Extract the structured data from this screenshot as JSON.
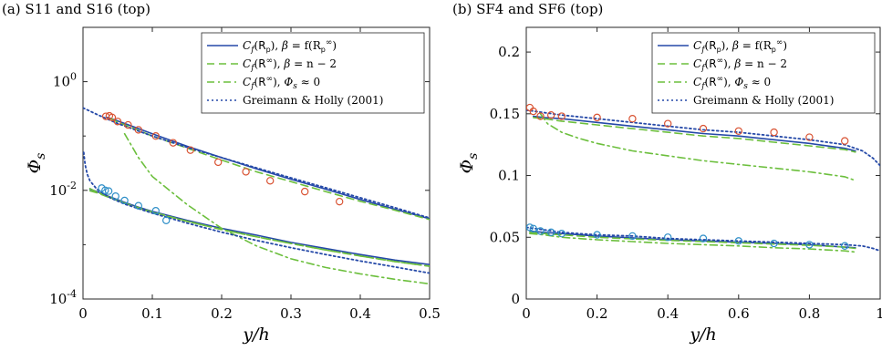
{
  "chart_data": [
    {
      "type": "line",
      "title": "(a) S11 and S16 (top)",
      "xlabel": "y/h",
      "ylabel": "Φ_s",
      "yscale": "log",
      "xlim": [
        0,
        0.5
      ],
      "ylim": [
        0.0001,
        10
      ],
      "xticks": [
        "0",
        "0.1",
        "0.2",
        "0.3",
        "0.4",
        "0.5"
      ],
      "yticks": [
        "10^-4",
        "10^-2",
        "10^0"
      ],
      "legend_position": "top-right",
      "legend": [
        {
          "math": "C",
          "sub": "f",
          "arg": "R",
          "argsub": "p",
          "argsup": "",
          "tail_b": "β",
          "tail": " = f(R",
          "tail_sub": "p",
          "tail_sup": "∞",
          "tail_end": ")"
        },
        {
          "math": "C",
          "sub": "f",
          "arg": "R",
          "argsub": "",
          "argsup": "∞",
          "tail_b": "β",
          "tail": " = n − 2",
          "tail_sub": "",
          "tail_sup": "",
          "tail_end": ""
        },
        {
          "math": "C",
          "sub": "f",
          "arg": "R",
          "argsub": "",
          "argsup": "∞",
          "tail_b": "Φ",
          "tail": " ≈ 0",
          "tail_sub": "s",
          "tail_sup": "",
          "tail_end": ""
        },
        {
          "plain": "Greimann & Holly (2001)"
        }
      ],
      "series": [
        {
          "key": "cf_rp",
          "color": "#2549a8",
          "style": "solid",
          "curves": [
            {
              "x": [
                0.035,
                0.05,
                0.075,
                0.1,
                0.15,
                0.2,
                0.25,
                0.3,
                0.35,
                0.4,
                0.45,
                0.5
              ],
              "y": [
                0.22,
                0.19,
                0.145,
                0.11,
                0.065,
                0.04,
                0.025,
                0.016,
                0.0105,
                0.0068,
                0.0045,
                0.003
              ]
            },
            {
              "x": [
                0.01,
                0.02,
                0.04,
                0.06,
                0.08,
                0.1,
                0.15,
                0.2,
                0.25,
                0.3,
                0.35,
                0.4,
                0.45,
                0.5
              ],
              "y": [
                0.0105,
                0.0095,
                0.0075,
                0.006,
                0.0049,
                0.0041,
                0.0028,
                0.002,
                0.0015,
                0.0011,
                0.00085,
                0.00066,
                0.00052,
                0.00043
              ]
            }
          ]
        },
        {
          "key": "cf_rinf_n2",
          "color": "#6cbf3d",
          "style": "dash",
          "curves": [
            {
              "x": [
                0.04,
                0.05,
                0.075,
                0.1,
                0.15,
                0.2,
                0.25,
                0.3,
                0.35,
                0.4,
                0.45,
                0.5
              ],
              "y": [
                0.21,
                0.18,
                0.135,
                0.1,
                0.06,
                0.036,
                0.022,
                0.0145,
                0.0095,
                0.0063,
                0.0043,
                0.0029
              ]
            },
            {
              "x": [
                0.01,
                0.02,
                0.04,
                0.06,
                0.08,
                0.1,
                0.15,
                0.2,
                0.25,
                0.3,
                0.35,
                0.4,
                0.45,
                0.5
              ],
              "y": [
                0.0098,
                0.009,
                0.0072,
                0.0058,
                0.0048,
                0.004,
                0.0027,
                0.0019,
                0.0014,
                0.00105,
                0.0008,
                0.00062,
                0.00049,
                0.0004
              ]
            }
          ]
        },
        {
          "key": "cf_rinf_phi0",
          "color": "#6cbf3d",
          "style": "dashdot",
          "curves": [
            {
              "x": [
                0.06,
                0.08,
                0.1,
                0.15,
                0.2,
                0.25,
                0.3,
                0.35,
                0.4,
                0.45,
                0.5
              ],
              "y": [
                0.11,
                0.04,
                0.018,
                0.0055,
                0.002,
                0.00095,
                0.00055,
                0.00038,
                0.00029,
                0.00023,
                0.00019
              ]
            },
            {
              "x": [
                0.01,
                0.02,
                0.04,
                0.06,
                0.08,
                0.1,
                0.15,
                0.2,
                0.25,
                0.3,
                0.35,
                0.4,
                0.45,
                0.5
              ],
              "y": [
                0.0108,
                0.0093,
                0.0074,
                0.0058,
                0.0047,
                0.0039,
                0.0027,
                0.0019,
                0.0014,
                0.00105,
                0.0008,
                0.00062,
                0.00049,
                0.0004
              ]
            }
          ]
        },
        {
          "key": "greimann",
          "color": "#2549a8",
          "style": "dot",
          "curves": [
            {
              "x": [
                0,
                0.02,
                0.05,
                0.1,
                0.15,
                0.2,
                0.25,
                0.3,
                0.35,
                0.4,
                0.45,
                0.5
              ],
              "y": [
                0.33,
                0.25,
                0.17,
                0.1,
                0.062,
                0.04,
                0.026,
                0.017,
                0.0112,
                0.0073,
                0.0048,
                0.0031
              ]
            },
            {
              "x": [
                0.001,
                0.003,
                0.006,
                0.01,
                0.02,
                0.04,
                0.06,
                0.1,
                0.15,
                0.2,
                0.25,
                0.3,
                0.35,
                0.4,
                0.45,
                0.5
              ],
              "y": [
                0.05,
                0.03,
                0.02,
                0.015,
                0.0105,
                0.0072,
                0.0056,
                0.0038,
                0.0025,
                0.0017,
                0.0012,
                0.00088,
                0.00066,
                0.0005,
                0.00039,
                0.0003
              ]
            }
          ]
        }
      ],
      "markers": [
        {
          "color": "#d95333",
          "x": [
            0.033,
            0.038,
            0.042,
            0.05,
            0.065,
            0.08,
            0.105,
            0.13,
            0.155,
            0.195,
            0.235,
            0.27,
            0.32,
            0.37
          ],
          "y": [
            0.23,
            0.235,
            0.22,
            0.185,
            0.16,
            0.13,
            0.1,
            0.075,
            0.055,
            0.033,
            0.022,
            0.015,
            0.0095,
            0.0062
          ]
        },
        {
          "color": "#2f8fc8",
          "x": [
            0.027,
            0.032,
            0.037,
            0.047,
            0.06,
            0.08,
            0.105,
            0.12
          ],
          "y": [
            0.011,
            0.01,
            0.0097,
            0.0078,
            0.0065,
            0.0052,
            0.0042,
            0.0028
          ]
        }
      ]
    },
    {
      "type": "line",
      "title": "(b) SF4 and SF6 (top)",
      "xlabel": "y/h",
      "ylabel": "Φ_s",
      "yscale": "linear",
      "xlim": [
        0,
        1
      ],
      "ylim": [
        0,
        0.22
      ],
      "xticks": [
        "0",
        "0.2",
        "0.4",
        "0.6",
        "0.8",
        "1"
      ],
      "yticks": [
        "0",
        "0.05",
        "0.1",
        "0.15",
        "0.2"
      ],
      "legend_position": "top-right",
      "legend": [
        {
          "math": "C",
          "sub": "f",
          "arg": "R",
          "argsub": "p",
          "argsup": "",
          "tail_b": "β",
          "tail": " = f(R",
          "tail_sub": "p",
          "tail_sup": "∞",
          "tail_end": ")"
        },
        {
          "math": "C",
          "sub": "f",
          "arg": "R",
          "argsub": "",
          "argsup": "∞",
          "tail_b": "β",
          "tail": " = n − 2",
          "tail_sub": "",
          "tail_sup": "",
          "tail_end": ""
        },
        {
          "math": "C",
          "sub": "f",
          "arg": "R",
          "argsub": "",
          "argsup": "∞",
          "tail_b": "Φ",
          "tail": " ≈ 0",
          "tail_sub": "s",
          "tail_sup": "",
          "tail_end": ""
        },
        {
          "plain": "Greimann & Holly (2001)"
        }
      ],
      "series": [
        {
          "key": "cf_rp",
          "color": "#2549a8",
          "style": "solid",
          "curves": [
            {
              "x": [
                0.02,
                0.05,
                0.1,
                0.2,
                0.3,
                0.4,
                0.5,
                0.6,
                0.7,
                0.8,
                0.9,
                0.93
              ],
              "y": [
                0.148,
                0.147,
                0.146,
                0.143,
                0.14,
                0.137,
                0.134,
                0.132,
                0.129,
                0.126,
                0.122,
                0.12
              ]
            },
            {
              "x": [
                0.01,
                0.05,
                0.1,
                0.2,
                0.3,
                0.4,
                0.5,
                0.6,
                0.7,
                0.8,
                0.9,
                0.93
              ],
              "y": [
                0.055,
                0.054,
                0.053,
                0.051,
                0.0495,
                0.048,
                0.047,
                0.046,
                0.045,
                0.044,
                0.042,
                0.0415
              ]
            }
          ]
        },
        {
          "key": "cf_rinf_n2",
          "color": "#6cbf3d",
          "style": "dash",
          "curves": [
            {
              "x": [
                0.02,
                0.05,
                0.1,
                0.2,
                0.3,
                0.4,
                0.5,
                0.6,
                0.7,
                0.8,
                0.9,
                0.93
              ],
              "y": [
                0.147,
                0.146,
                0.144,
                0.141,
                0.138,
                0.135,
                0.132,
                0.13,
                0.127,
                0.124,
                0.121,
                0.119
              ]
            },
            {
              "x": [
                0.01,
                0.05,
                0.1,
                0.2,
                0.3,
                0.4,
                0.5,
                0.6,
                0.7,
                0.8,
                0.9,
                0.93
              ],
              "y": [
                0.054,
                0.053,
                0.052,
                0.05,
                0.0487,
                0.0475,
                0.0465,
                0.0455,
                0.0445,
                0.0435,
                0.042,
                0.041
              ]
            }
          ]
        },
        {
          "key": "cf_rinf_phi0",
          "color": "#6cbf3d",
          "style": "dashdot",
          "curves": [
            {
              "x": [
                0.04,
                0.06,
                0.1,
                0.15,
                0.2,
                0.3,
                0.4,
                0.5,
                0.6,
                0.7,
                0.8,
                0.9,
                0.93
              ],
              "y": [
                0.15,
                0.142,
                0.135,
                0.13,
                0.126,
                0.12,
                0.116,
                0.112,
                0.109,
                0.106,
                0.103,
                0.099,
                0.096
              ]
            },
            {
              "x": [
                0.01,
                0.05,
                0.1,
                0.2,
                0.3,
                0.4,
                0.5,
                0.6,
                0.7,
                0.8,
                0.9,
                0.93
              ],
              "y": [
                0.053,
                0.052,
                0.05,
                0.048,
                0.0465,
                0.045,
                0.044,
                0.043,
                0.0415,
                0.0405,
                0.039,
                0.038
              ]
            }
          ]
        },
        {
          "key": "greimann",
          "color": "#2549a8",
          "style": "dot",
          "curves": [
            {
              "x": [
                0,
                0.05,
                0.1,
                0.2,
                0.3,
                0.4,
                0.5,
                0.6,
                0.7,
                0.8,
                0.9,
                0.95,
                0.98,
                1.0
              ],
              "y": [
                0.153,
                0.151,
                0.149,
                0.146,
                0.143,
                0.14,
                0.137,
                0.135,
                0.132,
                0.129,
                0.125,
                0.12,
                0.114,
                0.108
              ]
            },
            {
              "x": [
                0,
                0.05,
                0.1,
                0.2,
                0.3,
                0.4,
                0.5,
                0.6,
                0.7,
                0.8,
                0.9,
                0.95,
                0.98,
                1.0
              ],
              "y": [
                0.058,
                0.056,
                0.054,
                0.052,
                0.051,
                0.049,
                0.048,
                0.047,
                0.046,
                0.045,
                0.044,
                0.043,
                0.041,
                0.039
              ]
            }
          ]
        }
      ],
      "markers": [
        {
          "color": "#d95333",
          "x": [
            0.01,
            0.02,
            0.04,
            0.07,
            0.1,
            0.2,
            0.3,
            0.4,
            0.5,
            0.6,
            0.7,
            0.8,
            0.9
          ],
          "y": [
            0.155,
            0.152,
            0.148,
            0.149,
            0.148,
            0.147,
            0.146,
            0.142,
            0.138,
            0.136,
            0.135,
            0.131,
            0.128
          ]
        },
        {
          "color": "#2f8fc8",
          "x": [
            0.01,
            0.02,
            0.04,
            0.07,
            0.1,
            0.2,
            0.3,
            0.4,
            0.5,
            0.6,
            0.7,
            0.8,
            0.9
          ],
          "y": [
            0.058,
            0.057,
            0.055,
            0.054,
            0.053,
            0.052,
            0.051,
            0.05,
            0.049,
            0.047,
            0.045,
            0.044,
            0.043
          ]
        }
      ]
    }
  ]
}
